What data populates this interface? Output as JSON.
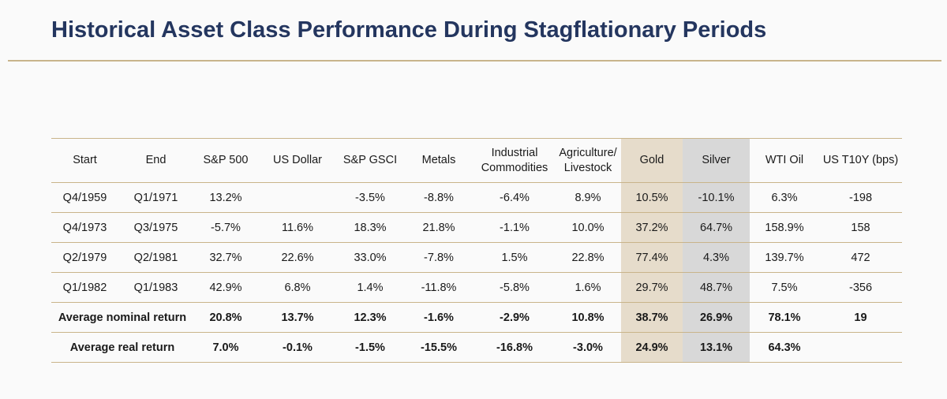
{
  "title": "Historical Asset Class Performance During Stagflationary Periods",
  "highlight_colors": {
    "gold": "#e6dccb",
    "silver": "#d8d8d8",
    "rule": "#c9b48a",
    "title": "#24365f"
  },
  "table": {
    "headers": [
      "Start",
      "End",
      "S&P 500",
      "US Dollar",
      "S&P GSCI",
      "Metals",
      "Industrial Commodities",
      "Agriculture/ Livestock",
      "Gold",
      "Silver",
      "WTI Oil",
      "US T10Y (bps)"
    ],
    "rows": [
      [
        "Q4/1959",
        "Q1/1971",
        "13.2%",
        "",
        "-3.5%",
        "-8.8%",
        "-6.4%",
        "8.9%",
        "10.5%",
        "-10.1%",
        "6.3%",
        "-198"
      ],
      [
        "Q4/1973",
        "Q3/1975",
        "-5.7%",
        "11.6%",
        "18.3%",
        "21.8%",
        "-1.1%",
        "10.0%",
        "37.2%",
        "64.7%",
        "158.9%",
        "158"
      ],
      [
        "Q2/1979",
        "Q2/1981",
        "32.7%",
        "22.6%",
        "33.0%",
        "-7.8%",
        "1.5%",
        "22.8%",
        "77.4%",
        "4.3%",
        "139.7%",
        "472"
      ],
      [
        "Q1/1982",
        "Q1/1983",
        "42.9%",
        "6.8%",
        "1.4%",
        "-11.8%",
        "-5.8%",
        "1.6%",
        "29.7%",
        "48.7%",
        "7.5%",
        "-356"
      ]
    ],
    "summary_rows": [
      {
        "label": "Average nominal return",
        "values": [
          "20.8%",
          "13.7%",
          "12.3%",
          "-1.6%",
          "-2.9%",
          "10.8%",
          "38.7%",
          "26.9%",
          "78.1%",
          "19"
        ]
      },
      {
        "label": "Average real return",
        "values": [
          "7.0%",
          "-0.1%",
          "-1.5%",
          "-15.5%",
          "-16.8%",
          "-3.0%",
          "24.9%",
          "13.1%",
          "64.3%",
          ""
        ]
      }
    ]
  }
}
